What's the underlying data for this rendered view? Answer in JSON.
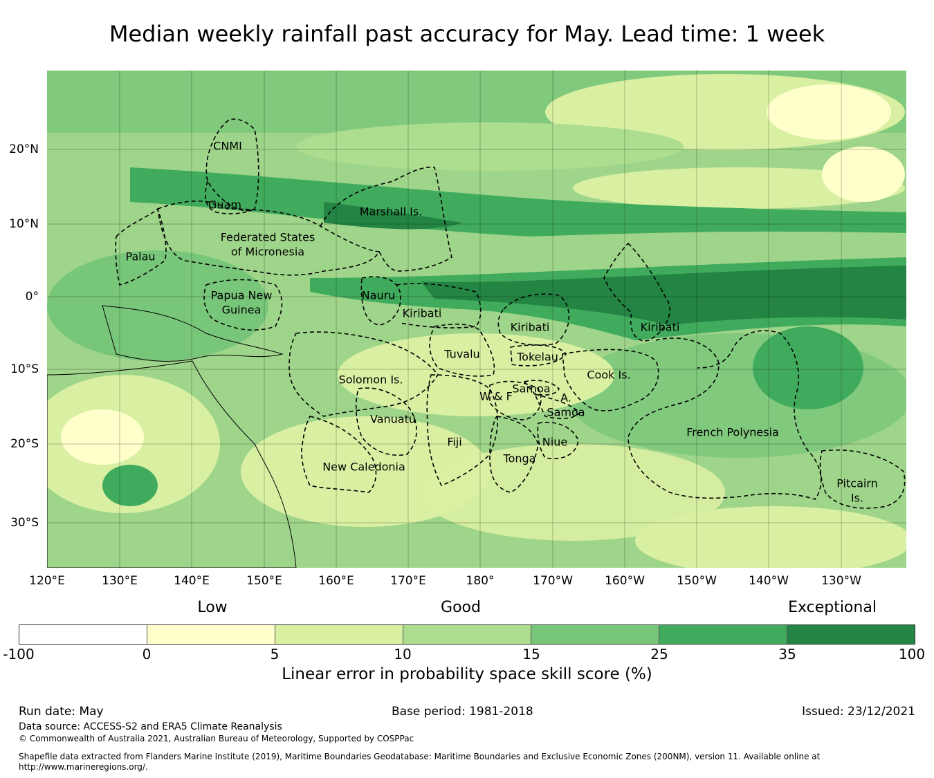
{
  "title": "Median weekly rainfall past accuracy for May. Lead time: 1 week",
  "map": {
    "lat_labels": [
      "20°N",
      "10°N",
      "0°",
      "10°S",
      "20°S",
      "30°S"
    ],
    "lon_labels": [
      "120°E",
      "130°E",
      "140°E",
      "150°E",
      "160°E",
      "170°E",
      "180°",
      "170°W",
      "160°W",
      "150°W",
      "140°W",
      "130°W"
    ],
    "regions": {
      "cnmi": "CNMI",
      "guam": "Guam",
      "marshall": "Marshall Is.",
      "fsm_1": "Federated States",
      "fsm_2": "of Micronesia",
      "palau": "Palau",
      "png_1": "Papua New",
      "png_2": "Guinea",
      "nauru": "Nauru",
      "kiribati_w": "Kiribati",
      "kiribati_c": "Kiribati",
      "kiribati_e": "Kiribati",
      "tuvalu": "Tuvalu",
      "tokelau": "Tokelau",
      "solomon": "Solomon Is.",
      "samoa": "Samoa",
      "wf": "W & F",
      "asamoa_1": "A.",
      "asamoa_2": "Samoa",
      "cook": "Cook Is.",
      "vanuatu": "Vanuatu",
      "fiji": "Fiji",
      "niue": "Niue",
      "tonga": "Tonga",
      "french_polynesia": "French Polynesia",
      "new_caledonia": "New Caledonia",
      "pitcairn_1": "Pitcairn",
      "pitcairn_2": "Is."
    }
  },
  "legend": {
    "categories": [
      "Low",
      "Good",
      "Exceptional"
    ],
    "ticks": [
      "-100",
      "0",
      "5",
      "10",
      "15",
      "25",
      "35",
      "100"
    ],
    "colors": [
      "#ffffff",
      "#ffffcc",
      "#d9f0a3",
      "#addd8e",
      "#78c679",
      "#41ab5d",
      "#238443"
    ],
    "title": "Linear error in probability space skill score (%)"
  },
  "footer": {
    "run_date": "Run date: May",
    "base_period": "Base period: 1981-2018",
    "issued": "Issued: 23/12/2021",
    "data_source": "Data source: ACCESS-S2 and ERA5 Climate Reanalysis",
    "copyright": "© Commonwealth of Australia 2021, Australian Bureau of Meteorology, Supported by COSPPac",
    "shapefile_1": "Shapefile data extracted from Flanders Marine Institute (2019), Maritime Boundaries Geodatabase: Maritime Boundaries and Exclusive Economic Zones (200NM), version 11. Available online at",
    "shapefile_2": "http://www.marineregions.org/."
  }
}
